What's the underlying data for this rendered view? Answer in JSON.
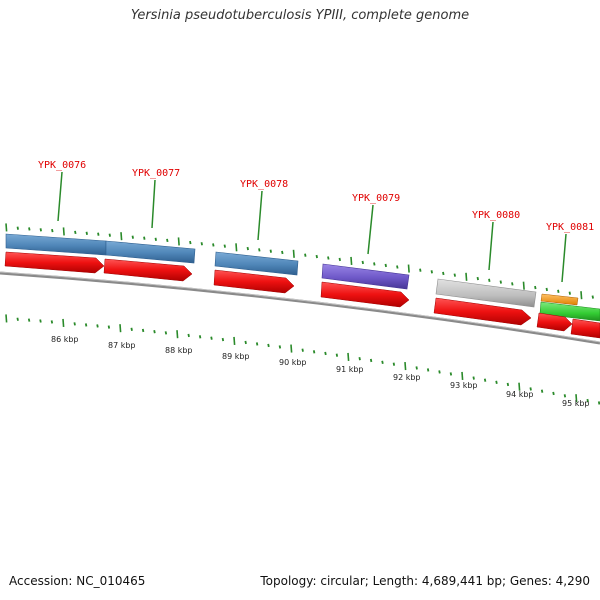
{
  "title": "Yersinia pseudotuberculosis YPIII, complete genome",
  "accession": "Accession: NC_010465",
  "summary": "Topology: circular; Length: 4,689,441 bp; Genes: 4,290",
  "colors": {
    "gene_label": "#e00000",
    "cds_arrow": "#ee1111",
    "tick": "#2a8a2a",
    "backbone": "#8a8a8a",
    "blue_feature": "#4f86b8",
    "purple_feature": "#6e58c8",
    "gray_feature": "#bdbdbd",
    "orange_feature": "#f39a1e",
    "green_feature": "#33cc33"
  },
  "genes": [
    {
      "label": "YPK_0076",
      "feature_color": "blue"
    },
    {
      "label": "YPK_0077",
      "feature_color": "blue"
    },
    {
      "label": "YPK_0078",
      "feature_color": "blue"
    },
    {
      "label": "YPK_0079",
      "feature_color": "purple"
    },
    {
      "label": "YPK_0080",
      "feature_color": "gray"
    },
    {
      "label": "YPK_0081",
      "feature_color": "orange-green"
    }
  ],
  "scale_labels": [
    "86 kbp",
    "87 kbp",
    "88 kbp",
    "89 kbp",
    "90 kbp",
    "91 kbp",
    "92 kbp",
    "93 kbp",
    "94 kbp",
    "95 kbp"
  ]
}
